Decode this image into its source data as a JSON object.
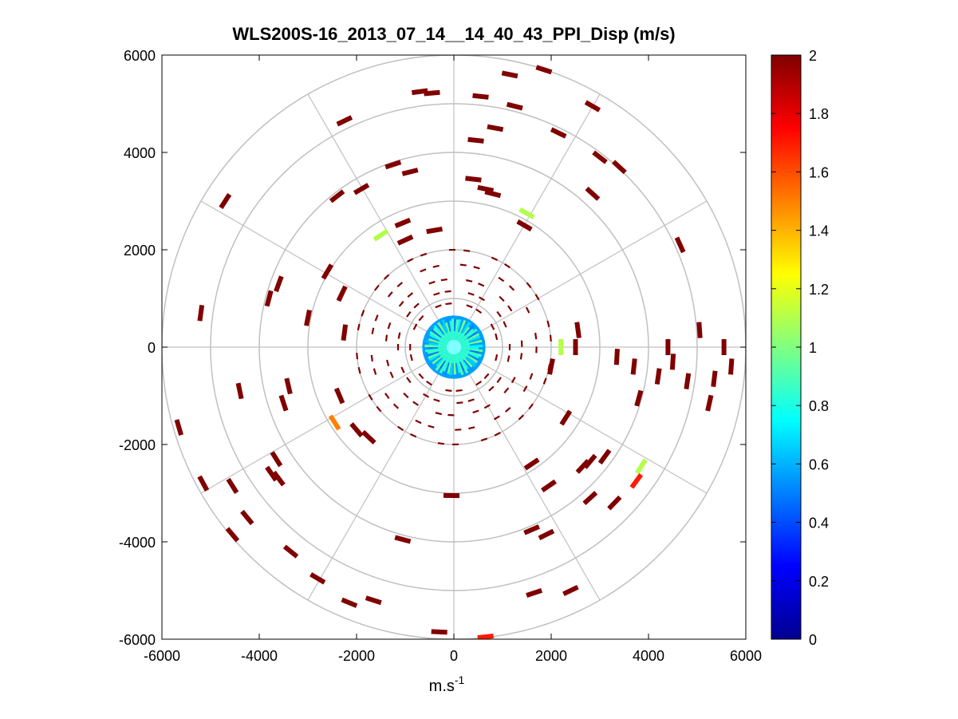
{
  "chart_data": {
    "type": "scatter",
    "subtype": "polar-ppi-scan",
    "title": "WLS200S-16_2013_07_14__14_40_43_PPI_Disp (m/s)",
    "xlabel": "m.s",
    "xlabel_superscript": "-1",
    "ylabel": "",
    "xlim": [
      -6000,
      6000
    ],
    "ylim": [
      -6000,
      6000
    ],
    "x_ticks": [
      -6000,
      -4000,
      -2000,
      0,
      2000,
      4000,
      6000
    ],
    "y_ticks": [
      -6000,
      -4000,
      -2000,
      0,
      2000,
      4000,
      6000
    ],
    "x_tick_labels": [
      "-6000",
      "-4000",
      "-2000",
      "0",
      "2000",
      "4000",
      "6000"
    ],
    "y_tick_labels": [
      "-6000",
      "-4000",
      "-2000",
      "0",
      "2000",
      "4000",
      "6000"
    ],
    "range_rings_m": [
      1000,
      2000,
      3000,
      4000,
      5000,
      6000
    ],
    "spoke_angles_deg": [
      0,
      30,
      60,
      90,
      120,
      150,
      180,
      210,
      240,
      270,
      300,
      330
    ],
    "grid": true,
    "colorbar": {
      "colormap": "jet",
      "min": 0,
      "max": 2,
      "ticks": [
        0,
        0.2,
        0.4,
        0.6,
        0.8,
        1,
        1.2,
        1.4,
        1.6,
        1.8,
        2
      ],
      "tick_labels": [
        "0",
        "0.2",
        "0.4",
        "0.6",
        "0.8",
        "1",
        "1.2",
        "1.4",
        "1.6",
        "1.8",
        "2"
      ],
      "position": "right"
    },
    "near_range_blob": {
      "center": [
        0,
        0
      ],
      "radius_m": 600,
      "value_range": [
        0.5,
        1.0
      ]
    },
    "segments": [
      {
        "x": -700,
        "y": 5250,
        "v": 2
      },
      {
        "x": -450,
        "y": 5220,
        "v": 2
      },
      {
        "x": 550,
        "y": 5150,
        "v": 2
      },
      {
        "x": 1150,
        "y": 5600,
        "v": 2
      },
      {
        "x": 1850,
        "y": 5700,
        "v": 2
      },
      {
        "x": 1250,
        "y": 4950,
        "v": 2
      },
      {
        "x": 2850,
        "y": 4950,
        "v": 2
      },
      {
        "x": -2250,
        "y": 4650,
        "v": 2
      },
      {
        "x": 850,
        "y": 4500,
        "v": 2
      },
      {
        "x": 450,
        "y": 4250,
        "v": 2
      },
      {
        "x": 2150,
        "y": 4400,
        "v": 2
      },
      {
        "x": 3000,
        "y": 3900,
        "v": 2
      },
      {
        "x": 3400,
        "y": 3700,
        "v": 2
      },
      {
        "x": -1250,
        "y": 3750,
        "v": 2
      },
      {
        "x": -900,
        "y": 3600,
        "v": 2
      },
      {
        "x": -4700,
        "y": 3000,
        "v": 2
      },
      {
        "x": 400,
        "y": 3450,
        "v": 2
      },
      {
        "x": 650,
        "y": 3250,
        "v": 2
      },
      {
        "x": 800,
        "y": 3150,
        "v": 2
      },
      {
        "x": 2850,
        "y": 3150,
        "v": 2
      },
      {
        "x": -1900,
        "y": 3250,
        "v": 2
      },
      {
        "x": -2400,
        "y": 3100,
        "v": 2
      },
      {
        "x": 1500,
        "y": 2750,
        "v": 1.1
      },
      {
        "x": -1050,
        "y": 2550,
        "v": 2
      },
      {
        "x": -1500,
        "y": 2300,
        "v": 1.1
      },
      {
        "x": -1000,
        "y": 2200,
        "v": 2
      },
      {
        "x": -400,
        "y": 2400,
        "v": 2
      },
      {
        "x": 1450,
        "y": 2500,
        "v": 2
      },
      {
        "x": 4650,
        "y": 2100,
        "v": 2
      },
      {
        "x": -2600,
        "y": 1550,
        "v": 2
      },
      {
        "x": -3600,
        "y": 1300,
        "v": 2
      },
      {
        "x": -2300,
        "y": 1100,
        "v": 2
      },
      {
        "x": -3800,
        "y": 1000,
        "v": 2
      },
      {
        "x": -5200,
        "y": 700,
        "v": 2
      },
      {
        "x": -3000,
        "y": 600,
        "v": 2
      },
      {
        "x": -2250,
        "y": 300,
        "v": 2
      },
      {
        "x": 2550,
        "y": 350,
        "v": 2
      },
      {
        "x": 2500,
        "y": 0,
        "v": 2
      },
      {
        "x": 5050,
        "y": 350,
        "v": 2
      },
      {
        "x": 4400,
        "y": 0,
        "v": 2
      },
      {
        "x": 5550,
        "y": 0,
        "v": 2
      },
      {
        "x": 3350,
        "y": -200,
        "v": 2
      },
      {
        "x": 3700,
        "y": -400,
        "v": 2
      },
      {
        "x": 4500,
        "y": -300,
        "v": 2
      },
      {
        "x": 5700,
        "y": -400,
        "v": 2
      },
      {
        "x": 4200,
        "y": -600,
        "v": 2
      },
      {
        "x": 4800,
        "y": -700,
        "v": 2
      },
      {
        "x": 5350,
        "y": -650,
        "v": 2
      },
      {
        "x": 2000,
        "y": -400,
        "v": 2
      },
      {
        "x": 3800,
        "y": -1050,
        "v": 2
      },
      {
        "x": 5250,
        "y": -1150,
        "v": 2
      },
      {
        "x": 2200,
        "y": 0,
        "v": 1.1
      },
      {
        "x": -4400,
        "y": -900,
        "v": 2
      },
      {
        "x": -3400,
        "y": -800,
        "v": 2
      },
      {
        "x": -3500,
        "y": -1150,
        "v": 2
      },
      {
        "x": -2350,
        "y": -1000,
        "v": 2
      },
      {
        "x": -5650,
        "y": -1650,
        "v": 2
      },
      {
        "x": -2450,
        "y": -1550,
        "v": 1.5
      },
      {
        "x": -2000,
        "y": -1700,
        "v": 2
      },
      {
        "x": -1750,
        "y": -1850,
        "v": 2
      },
      {
        "x": 2300,
        "y": -1450,
        "v": 2
      },
      {
        "x": -3650,
        "y": -2300,
        "v": 2
      },
      {
        "x": -3750,
        "y": -2600,
        "v": 2
      },
      {
        "x": -5150,
        "y": -2800,
        "v": 2
      },
      {
        "x": -4550,
        "y": -2850,
        "v": 2
      },
      {
        "x": -3600,
        "y": -2700,
        "v": 2
      },
      {
        "x": 1600,
        "y": -2400,
        "v": 2
      },
      {
        "x": 2650,
        "y": -2450,
        "v": 2
      },
      {
        "x": 2800,
        "y": -2350,
        "v": 2
      },
      {
        "x": 3100,
        "y": -2250,
        "v": 2
      },
      {
        "x": 3850,
        "y": -2450,
        "v": 1.1
      },
      {
        "x": 3750,
        "y": -2750,
        "v": 1.7
      },
      {
        "x": 1950,
        "y": -2850,
        "v": 2
      },
      {
        "x": 2800,
        "y": -3100,
        "v": 2
      },
      {
        "x": 3300,
        "y": -3200,
        "v": 2
      },
      {
        "x": -4250,
        "y": -3500,
        "v": 2
      },
      {
        "x": -4550,
        "y": -3850,
        "v": 2
      },
      {
        "x": -3350,
        "y": -4200,
        "v": 2
      },
      {
        "x": 1900,
        "y": -3850,
        "v": 2
      },
      {
        "x": -1050,
        "y": -3950,
        "v": 2
      },
      {
        "x": 1600,
        "y": -3750,
        "v": 2
      },
      {
        "x": -2800,
        "y": -4750,
        "v": 2
      },
      {
        "x": -2150,
        "y": -5250,
        "v": 2
      },
      {
        "x": -1650,
        "y": -5200,
        "v": 2
      },
      {
        "x": 2400,
        "y": -5000,
        "v": 2
      },
      {
        "x": 1650,
        "y": -5050,
        "v": 2
      },
      {
        "x": -300,
        "y": -5850,
        "v": 2
      },
      {
        "x": 650,
        "y": -5950,
        "v": 1.7
      },
      {
        "x": -50,
        "y": -3050,
        "v": 2
      }
    ]
  }
}
